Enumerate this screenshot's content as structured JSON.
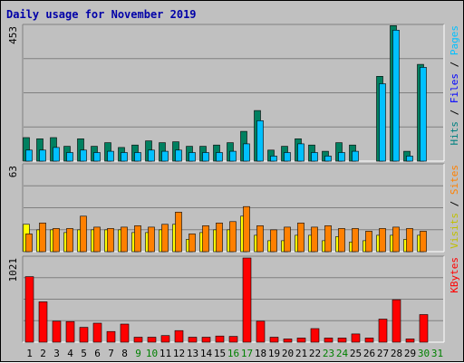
{
  "chart_data": {
    "title": "Daily usage for November 2019",
    "days": [
      "1",
      "2",
      "3",
      "4",
      "5",
      "6",
      "7",
      "8",
      "9",
      "10",
      "11",
      "12",
      "13",
      "14",
      "15",
      "16",
      "17",
      "18",
      "19",
      "20",
      "21",
      "22",
      "23",
      "24",
      "25",
      "26",
      "27",
      "28",
      "29",
      "30",
      "31"
    ],
    "weekend_days": [
      9,
      10,
      16,
      17,
      23,
      24,
      30,
      31
    ],
    "panels": [
      {
        "type": "bar",
        "max_label": "453",
        "ymax": 453,
        "legend": [
          {
            "text": "Hits",
            "color": "#008080"
          },
          {
            "text": " / ",
            "color": "#000000"
          },
          {
            "text": "Files",
            "color": "#0000ff"
          },
          {
            "text": " / ",
            "color": "#000000"
          },
          {
            "text": "Pages",
            "color": "#00c0ff"
          }
        ],
        "series": [
          {
            "name": "Hits",
            "color": "#008060",
            "values": [
              79,
              75,
              79,
              50,
              75,
              50,
              62,
              46,
              54,
              68,
              62,
              65,
              50,
              50,
              54,
              62,
              100,
              170,
              37,
              50,
              75,
              54,
              33,
              62,
              54,
              0,
              285,
              455,
              33,
              325,
              0
            ]
          },
          {
            "name": "Files",
            "color": "#00c0ff",
            "values": [
              37,
              37,
              46,
              29,
              37,
              29,
              33,
              29,
              29,
              37,
              33,
              37,
              29,
              29,
              29,
              33,
              58,
              136,
              17,
              29,
              58,
              29,
              17,
              29,
              33,
              0,
              260,
              440,
              17,
              315,
              0
            ]
          },
          {
            "name": "Pages",
            "color": "#00c0ff",
            "values": [
              0,
              0,
              0,
              0,
              0,
              0,
              0,
              0,
              0,
              0,
              0,
              0,
              0,
              0,
              0,
              0,
              0,
              0,
              0,
              0,
              0,
              0,
              0,
              0,
              0,
              0,
              0,
              0,
              0,
              0,
              0
            ]
          }
        ]
      },
      {
        "type": "bar",
        "max_label": "63",
        "ymax": 63,
        "legend": [
          {
            "text": "Visits",
            "color": "#c0c000"
          },
          {
            "text": " / ",
            "color": "#000000"
          },
          {
            "text": "Sites",
            "color": "#ff8000"
          }
        ],
        "series": [
          {
            "name": "Visits",
            "color": "#ffff00",
            "values": [
              20,
              16,
              16,
              14,
              16,
              16,
              16,
              16,
              14,
              14,
              16,
              20,
              9,
              14,
              16,
              16,
              26,
              12,
              8,
              8,
              12,
              12,
              8,
              11,
              7,
              8,
              12,
              12,
              9,
              12,
              0
            ]
          },
          {
            "name": "Sites",
            "color": "#ff8000",
            "values": [
              13,
              21,
              17,
              17,
              26,
              18,
              17,
              18,
              19,
              18,
              20,
              29,
              13,
              19,
              21,
              22,
              33,
              19,
              16,
              18,
              21,
              18,
              19,
              17,
              17,
              15,
              17,
              18,
              17,
              15,
              0
            ]
          }
        ]
      },
      {
        "type": "bar",
        "max_label": "1021",
        "ymax": 1021,
        "legend": [
          {
            "text": "KBytes",
            "color": "#ff0000"
          }
        ],
        "series": [
          {
            "name": "KBytes",
            "color": "#ff0000",
            "values": [
              795,
              490,
              255,
              250,
              180,
              230,
              130,
              220,
              60,
              60,
              80,
              140,
              60,
              60,
              75,
              70,
              1021,
              255,
              60,
              40,
              50,
              165,
              50,
              50,
              100,
              50,
              280,
              515,
              40,
              335,
              0
            ]
          }
        ]
      }
    ]
  }
}
